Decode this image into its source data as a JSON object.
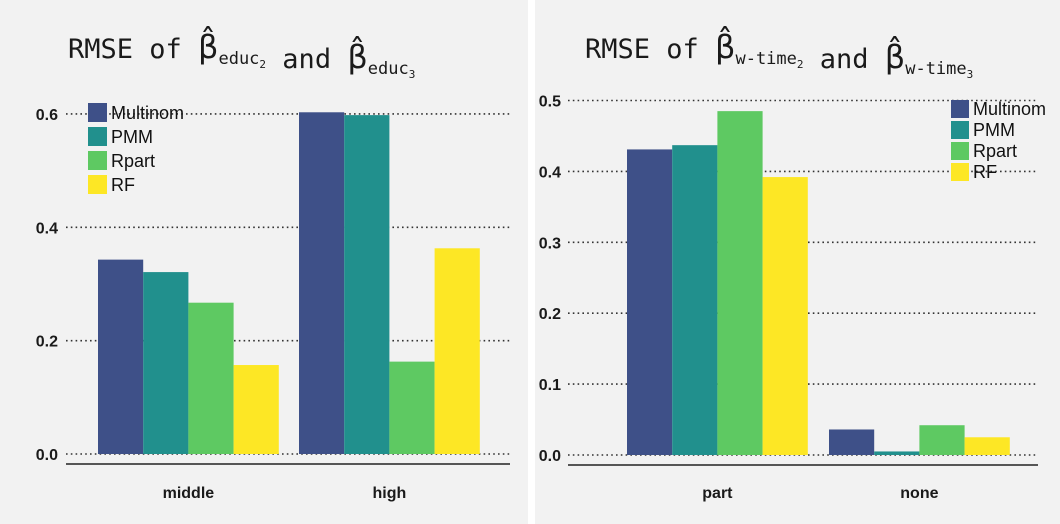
{
  "chart_data": [
    {
      "type": "bar",
      "title": {
        "prefix": "RMSE of ",
        "beta1_sub": "educ",
        "beta1_subsub": "2",
        "mid": " and ",
        "beta2_sub": "educ",
        "beta2_subsub": "3"
      },
      "categories": [
        "middle",
        "high"
      ],
      "series": [
        {
          "name": "Multinom",
          "values": [
            0.343,
            0.603
          ]
        },
        {
          "name": "PMM",
          "values": [
            0.321,
            0.598
          ]
        },
        {
          "name": "Rpart",
          "values": [
            0.267,
            0.163
          ]
        },
        {
          "name": "RF",
          "values": [
            0.157,
            0.363
          ]
        }
      ],
      "ylim": [
        0,
        0.62
      ],
      "yticks": [
        "0.0",
        "0.2",
        "0.4",
        "0.6"
      ],
      "grid": "horizontal dotted",
      "legend_position": "top-left"
    },
    {
      "type": "bar",
      "title": {
        "prefix": "RMSE of ",
        "beta1_sub": "w-time",
        "beta1_subsub": "2",
        "mid": " and ",
        "beta2_sub": "w-time",
        "beta2_subsub": "3"
      },
      "categories": [
        "part",
        "none"
      ],
      "series": [
        {
          "name": "Multinom",
          "values": [
            0.431,
            0.036
          ]
        },
        {
          "name": "PMM",
          "values": [
            0.437,
            0.005
          ]
        },
        {
          "name": "Rpart",
          "values": [
            0.485,
            0.042
          ]
        },
        {
          "name": "RF",
          "values": [
            0.392,
            0.025
          ]
        }
      ],
      "ylim": [
        0,
        0.52
      ],
      "yticks": [
        "0.0",
        "0.1",
        "0.2",
        "0.3",
        "0.4",
        "0.5"
      ],
      "grid": "horizontal dotted",
      "legend_position": "top-right"
    }
  ],
  "colors": {
    "Multinom": "#3e5088",
    "PMM": "#21908d",
    "Rpart": "#5ec962",
    "RF": "#fde725",
    "panel_background": "#f2f2f2",
    "grid": "#333333"
  }
}
